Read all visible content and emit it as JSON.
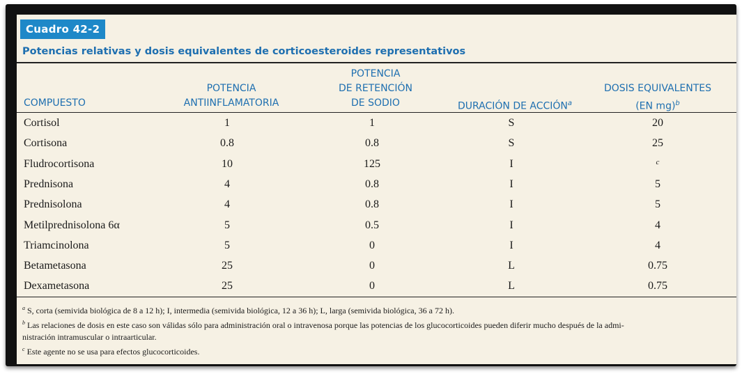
{
  "badge": "Cuadro 42-2",
  "title": "Potencias relativas y dosis equivalentes de corticoesteroides representativos",
  "headers": {
    "compound": "COMPUESTO",
    "anti_l1": "POTENCIA",
    "anti_l2": "ANTIINFLAMATORIA",
    "sodium_l1": "POTENCIA",
    "sodium_l2": "DE RETENCIÓN",
    "sodium_l3": "DE SODIO",
    "duration": "DURACIÓN DE ACCIÓN",
    "duration_sup": "a",
    "dose_l1": "DOSIS EQUIVALENTES",
    "dose_l2": "(EN mg)",
    "dose_sup": "b"
  },
  "rows": [
    {
      "name": "Cortisol",
      "anti": "1",
      "sodium": "1",
      "duration": "S",
      "dose": "20"
    },
    {
      "name": "Cortisona",
      "anti": "0.8",
      "sodium": "0.8",
      "duration": "S",
      "dose": "25"
    },
    {
      "name": "Fludrocortisona",
      "anti": "10",
      "sodium": "125",
      "duration": "I",
      "dose": "c"
    },
    {
      "name": "Prednisona",
      "anti": "4",
      "sodium": "0.8",
      "duration": "I",
      "dose": "5"
    },
    {
      "name": "Prednisolona",
      "anti": "4",
      "sodium": "0.8",
      "duration": "I",
      "dose": "5"
    },
    {
      "name": "Metilprednisolona 6α",
      "anti": "5",
      "sodium": "0.5",
      "duration": "I",
      "dose": "4"
    },
    {
      "name": "Triamcinolona",
      "anti": "5",
      "sodium": "0",
      "duration": "I",
      "dose": "4"
    },
    {
      "name": "Betametasona",
      "anti": "25",
      "sodium": "0",
      "duration": "L",
      "dose": "0.75"
    },
    {
      "name": "Dexametasona",
      "anti": "25",
      "sodium": "0",
      "duration": "L",
      "dose": "0.75"
    }
  ],
  "notes": {
    "a_mark": "a",
    "a_text": " S, corta (semivida biológica de 8 a 12 h); I, intermedia (semivida biológica, 12 a 36 h); L, larga (semivida biológica, 36 a 72 h).",
    "b_mark": "b",
    "b_text_l1": " Las relaciones de dosis en este caso son válidas sólo para administración oral o intravenosa porque las potencias de los glucocorticoides pueden diferir mucho después de la admi-",
    "b_text_l2": "nistración intramuscular o intraarticular.",
    "c_mark": "c",
    "c_text": " Este agente no se usa para efectos glucocorticoides."
  }
}
